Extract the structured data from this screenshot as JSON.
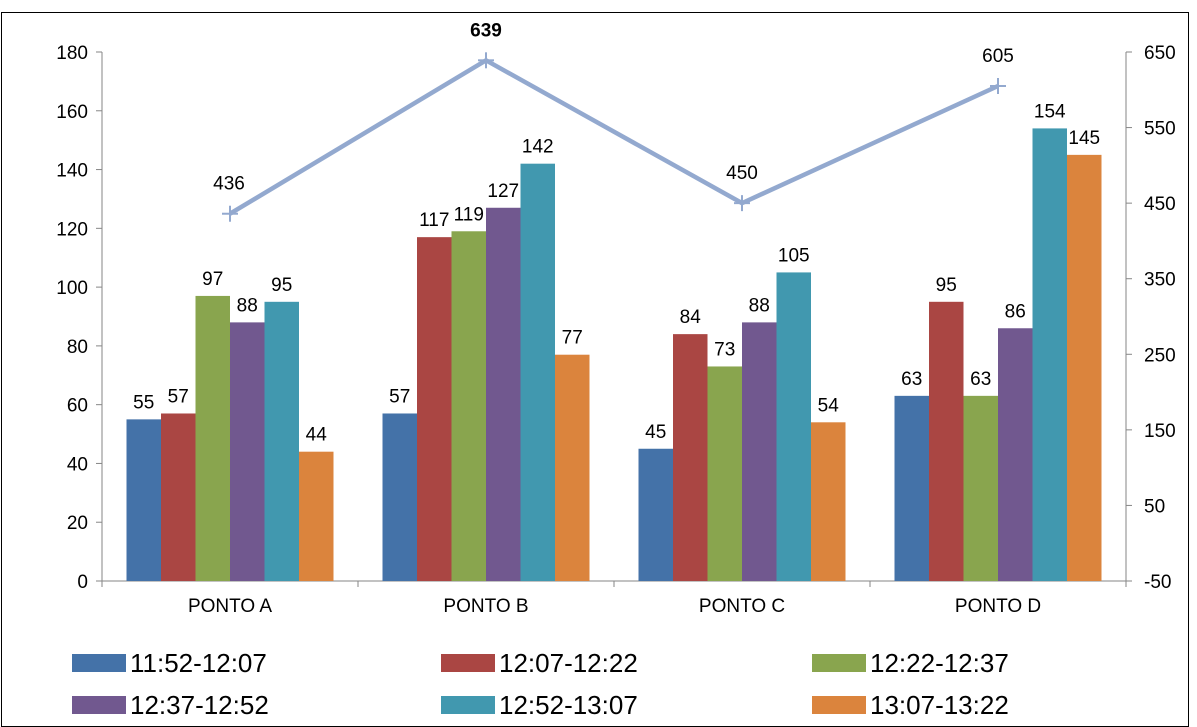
{
  "chart_data": {
    "type": "bar",
    "title": "",
    "xlabel": "",
    "ylabel": "",
    "categories": [
      "PONTO A",
      "PONTO B",
      "PONTO C",
      "PONTO D"
    ],
    "ylim": [
      0,
      180
    ],
    "y_ticks": [
      "0",
      "20",
      "40",
      "60",
      "80",
      "100",
      "120",
      "140",
      "160",
      "180"
    ],
    "y2lim": [
      -50,
      650
    ],
    "y2_ticks": [
      "-50",
      "50",
      "150",
      "250",
      "350",
      "450",
      "550",
      "650"
    ],
    "grid": false,
    "legend_position": "bottom",
    "series": [
      {
        "name": "11:52-12:07",
        "color": "#4472a8",
        "values": [
          55,
          57,
          45,
          63
        ]
      },
      {
        "name": "12:07-12:22",
        "color": "#aa4643",
        "values": [
          57,
          117,
          84,
          95
        ]
      },
      {
        "name": "12:22-12:37",
        "color": "#89a54e",
        "values": [
          97,
          119,
          73,
          63
        ]
      },
      {
        "name": "12:37-12:52",
        "color": "#71588f",
        "values": [
          88,
          127,
          88,
          86
        ]
      },
      {
        "name": "12:52-13:07",
        "color": "#4198af",
        "values": [
          95,
          142,
          105,
          154
        ]
      },
      {
        "name": "13:07-13:22",
        "color": "#db843d",
        "values": [
          44,
          77,
          54,
          145
        ]
      }
    ],
    "line_series": {
      "type": "line",
      "axis": "secondary",
      "color": "#93a9cf",
      "values": [
        436,
        639,
        450,
        605
      ],
      "bold_label_index": 1
    }
  }
}
